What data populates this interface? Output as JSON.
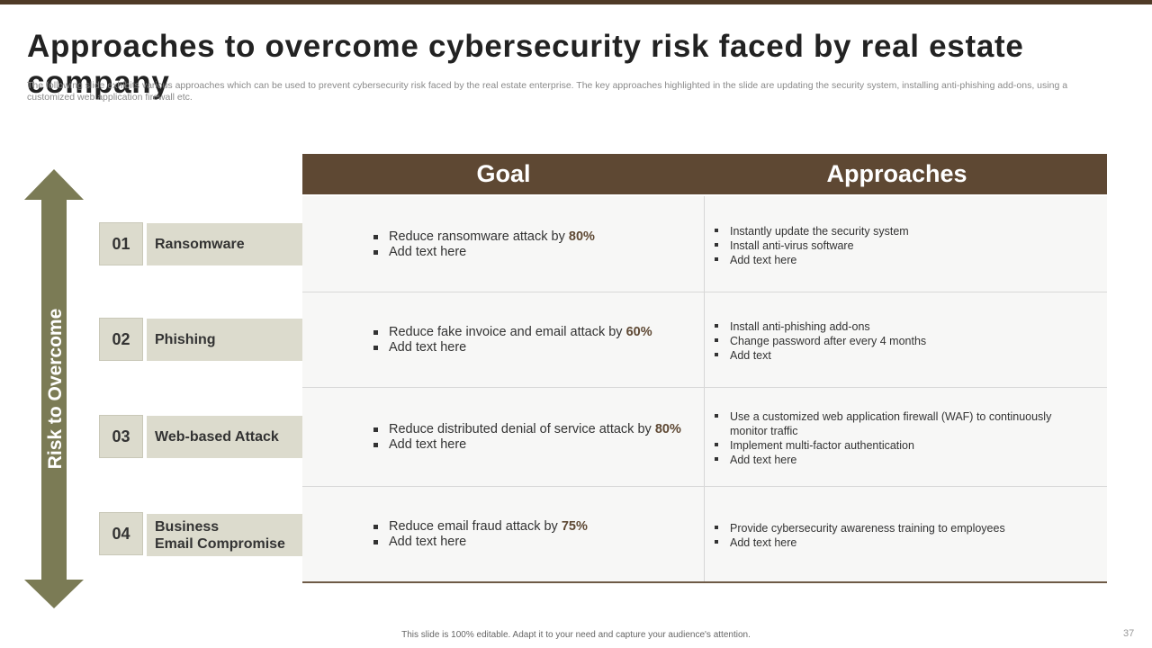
{
  "slide": {
    "title": "Approaches to overcome cybersecurity risk faced by real estate company",
    "subtitle": "The following slide exhibits various approaches which can be used to prevent cybersecurity risk faced by the real estate enterprise. The key approaches highlighted in the slide are updating the security system, installing anti-phishing add-ons, using a customized web application firewall etc.",
    "arrow_label": "Risk to Overcome",
    "footer": "This slide is 100% editable.  Adapt it to your need and capture your audience's attention.",
    "page_number": "37"
  },
  "table": {
    "headers": {
      "goal": "Goal",
      "approaches": "Approaches"
    },
    "rows": [
      {
        "number": "01",
        "risk": "Ransomware",
        "goal_text": "Reduce ransomware attack by ",
        "goal_pct": "80%",
        "goal_extra": "Add text here",
        "approaches": [
          "Instantly update the security system",
          "Install anti-virus  software",
          "Add text here"
        ]
      },
      {
        "number": "02",
        "risk": "Phishing",
        "goal_text": "Reduce fake invoice and email attack by ",
        "goal_pct": "60%",
        "goal_extra": "Add text here",
        "approaches": [
          "Install anti-phishing add-ons",
          "Change password after every 4 months",
          "Add text"
        ]
      },
      {
        "number": "03",
        "risk": "Web-based Attack",
        "goal_text": "Reduce distributed denial of service attack by ",
        "goal_pct": "80%",
        "goal_extra": "Add text here",
        "approaches": [
          "Use a customized web application firewall (WAF) to continuously monitor traffic",
          "Implement multi-factor authentication",
          "Add text here"
        ]
      },
      {
        "number": "04",
        "risk_line1": "Business",
        "risk_line2": "Email Compromise",
        "goal_text": "Reduce email fraud attack by ",
        "goal_pct": "75%",
        "goal_extra": "Add text here",
        "approaches": [
          "Provide  cybersecurity awareness training to employees",
          "Add text here"
        ]
      }
    ]
  },
  "colors": {
    "header_brown": "#5e4833",
    "arrow_olive": "#7b7b55",
    "risk_box_bg": "#dcdbcd",
    "top_bar": "#4f3a26"
  }
}
